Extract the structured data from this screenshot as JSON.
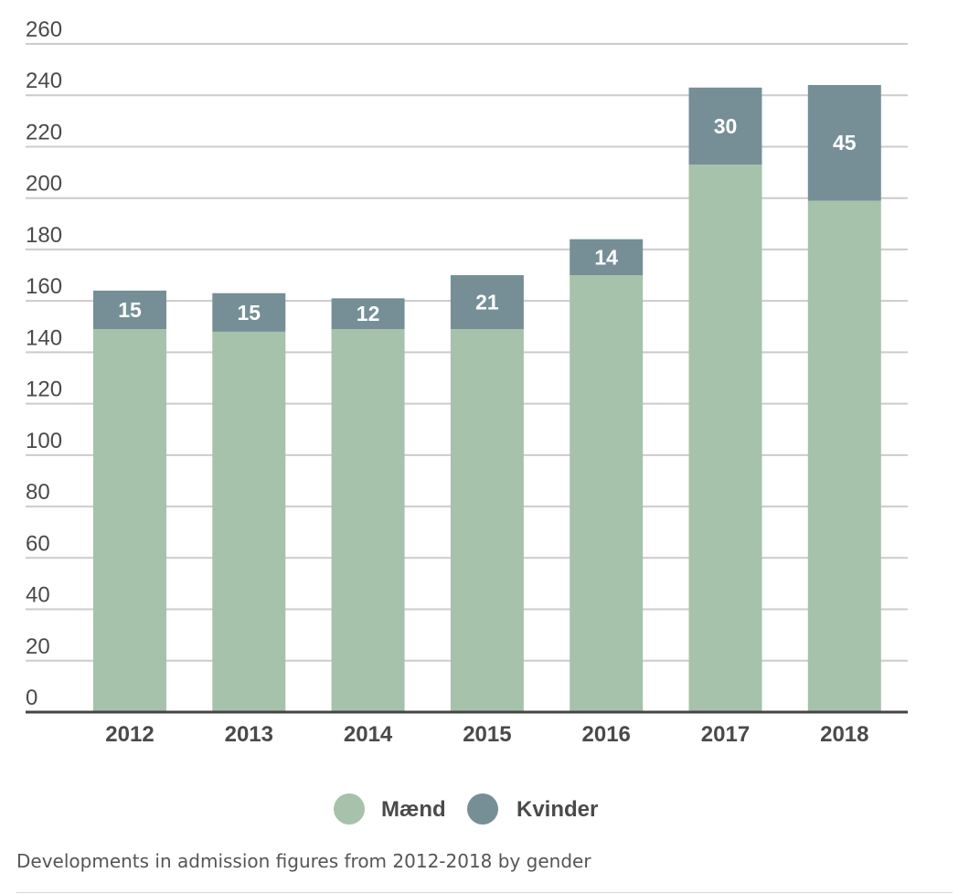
{
  "chart_data": {
    "type": "bar",
    "stacked": true,
    "categories": [
      "2012",
      "2013",
      "2014",
      "2015",
      "2016",
      "2017",
      "2018"
    ],
    "series": [
      {
        "name": "Mænd",
        "color": "#a6c2aa",
        "values": [
          149,
          148,
          149,
          149,
          170,
          213,
          199
        ]
      },
      {
        "name": "Kvinder",
        "color": "#768f97",
        "values": [
          15,
          15,
          12,
          21,
          14,
          30,
          45
        ]
      }
    ],
    "data_labels": [
      "15",
      "15",
      "12",
      "21",
      "14",
      "30",
      "45"
    ],
    "ylim": [
      0,
      260
    ],
    "yticks": [
      0,
      20,
      40,
      60,
      80,
      100,
      120,
      140,
      160,
      180,
      200,
      220,
      240,
      260
    ],
    "grid": true,
    "legend": "bottom-center",
    "xlabel": "",
    "ylabel": ""
  },
  "caption": "Developments in admission figures from 2012-2018 by gender"
}
